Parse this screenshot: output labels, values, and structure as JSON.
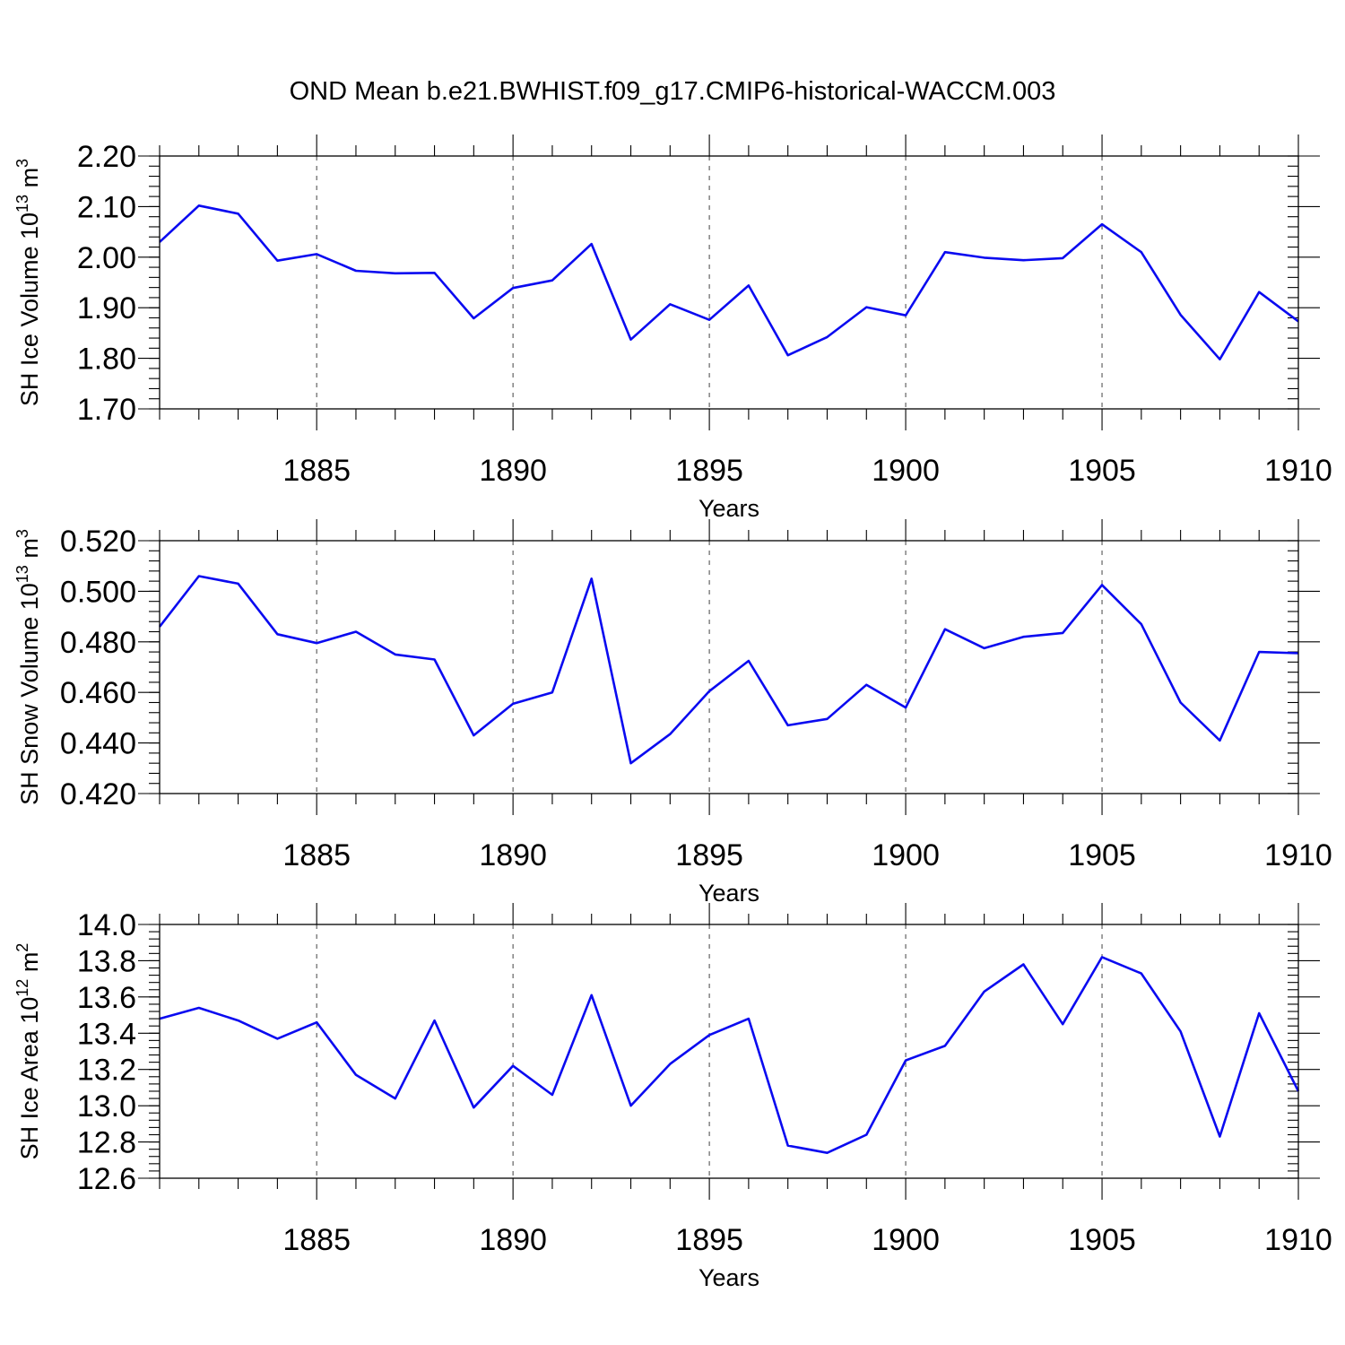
{
  "title": "OND Mean b.e21.BWHIST.f09_g17.CMIP6-historical-WACCM.003",
  "colors": {
    "series": "#0a0af0",
    "axes": "#000000",
    "grid": "#555555"
  },
  "chart_data": [
    {
      "type": "line",
      "id": "ice-volume",
      "ylabel": "SH Ice Volume 10",
      "ylabel_exp": "13",
      "ylabel_unit": " m",
      "ylabel_unit_exp": "3",
      "xlabel": "Years",
      "xlim": [
        1881,
        1910
      ],
      "ylim": [
        1.7,
        2.2
      ],
      "yticks": [
        1.7,
        1.8,
        1.9,
        2.0,
        2.1,
        2.2
      ],
      "ytick_labels": [
        "1.70",
        "1.80",
        "1.90",
        "2.00",
        "2.10",
        "2.20"
      ],
      "yminor_step": 0.02,
      "xticks": [
        1885,
        1890,
        1895,
        1900,
        1905,
        1910
      ],
      "xtick_labels": [
        "1885",
        "1890",
        "1895",
        "1900",
        "1905",
        "1910"
      ],
      "grid_x": [
        1885,
        1890,
        1895,
        1900,
        1905
      ],
      "x": [
        1881,
        1882,
        1883,
        1884,
        1885,
        1886,
        1887,
        1888,
        1889,
        1890,
        1891,
        1892,
        1893,
        1894,
        1895,
        1896,
        1897,
        1898,
        1899,
        1900,
        1901,
        1902,
        1903,
        1904,
        1905,
        1906,
        1907,
        1908,
        1909,
        1910
      ],
      "values": [
        2.03,
        2.102,
        2.086,
        1.993,
        2.006,
        1.973,
        1.968,
        1.969,
        1.879,
        1.939,
        1.954,
        2.026,
        1.837,
        1.907,
        1.876,
        1.944,
        1.806,
        1.842,
        1.901,
        1.885,
        2.01,
        1.999,
        1.994,
        1.998,
        2.065,
        2.01,
        1.886,
        1.798,
        1.931,
        1.873
      ]
    },
    {
      "type": "line",
      "id": "snow-volume",
      "ylabel": "SH Snow Volume 10",
      "ylabel_exp": "13",
      "ylabel_unit": " m",
      "ylabel_unit_exp": "3",
      "xlabel": "Years",
      "xlim": [
        1881,
        1910
      ],
      "ylim": [
        0.42,
        0.52
      ],
      "yticks": [
        0.42,
        0.44,
        0.46,
        0.48,
        0.5,
        0.52
      ],
      "ytick_labels": [
        "0.420",
        "0.440",
        "0.460",
        "0.480",
        "0.500",
        "0.520"
      ],
      "yminor_step": 0.004,
      "xticks": [
        1885,
        1890,
        1895,
        1900,
        1905,
        1910
      ],
      "xtick_labels": [
        "1885",
        "1890",
        "1895",
        "1900",
        "1905",
        "1910"
      ],
      "grid_x": [
        1885,
        1890,
        1895,
        1900,
        1905
      ],
      "x": [
        1881,
        1882,
        1883,
        1884,
        1885,
        1886,
        1887,
        1888,
        1889,
        1890,
        1891,
        1892,
        1893,
        1894,
        1895,
        1896,
        1897,
        1898,
        1899,
        1900,
        1901,
        1902,
        1903,
        1904,
        1905,
        1906,
        1907,
        1908,
        1909,
        1910
      ],
      "values": [
        0.486,
        0.506,
        0.503,
        0.483,
        0.4795,
        0.484,
        0.475,
        0.473,
        0.443,
        0.4555,
        0.46,
        0.505,
        0.432,
        0.4435,
        0.4605,
        0.4725,
        0.447,
        0.4495,
        0.463,
        0.454,
        0.485,
        0.4775,
        0.482,
        0.4835,
        0.5025,
        0.487,
        0.456,
        0.441,
        0.476,
        0.4755
      ]
    },
    {
      "type": "line",
      "id": "ice-area",
      "ylabel": "SH Ice Area 10",
      "ylabel_exp": "12",
      "ylabel_unit": " m",
      "ylabel_unit_exp": "2",
      "xlabel": "Years",
      "xlim": [
        1881,
        1910
      ],
      "ylim": [
        12.6,
        14.0
      ],
      "yticks": [
        12.6,
        12.8,
        13.0,
        13.2,
        13.4,
        13.6,
        13.8,
        14.0
      ],
      "ytick_labels": [
        "12.6",
        "12.8",
        "13.0",
        "13.2",
        "13.4",
        "13.6",
        "13.8",
        "14.0"
      ],
      "yminor_step": 0.04,
      "xticks": [
        1885,
        1890,
        1895,
        1900,
        1905,
        1910
      ],
      "xtick_labels": [
        "1885",
        "1890",
        "1895",
        "1900",
        "1905",
        "1910"
      ],
      "grid_x": [
        1885,
        1890,
        1895,
        1900,
        1905
      ],
      "x": [
        1881,
        1882,
        1883,
        1884,
        1885,
        1886,
        1887,
        1888,
        1889,
        1890,
        1891,
        1892,
        1893,
        1894,
        1895,
        1896,
        1897,
        1898,
        1899,
        1900,
        1901,
        1902,
        1903,
        1904,
        1905,
        1906,
        1907,
        1908,
        1909,
        1910
      ],
      "values": [
        13.48,
        13.54,
        13.47,
        13.37,
        13.46,
        13.17,
        13.04,
        13.47,
        12.99,
        13.22,
        13.06,
        13.61,
        13.0,
        13.23,
        13.39,
        13.48,
        12.78,
        12.74,
        12.84,
        13.25,
        13.33,
        13.63,
        13.78,
        13.45,
        13.82,
        13.73,
        13.41,
        12.83,
        13.51,
        13.08
      ]
    }
  ]
}
